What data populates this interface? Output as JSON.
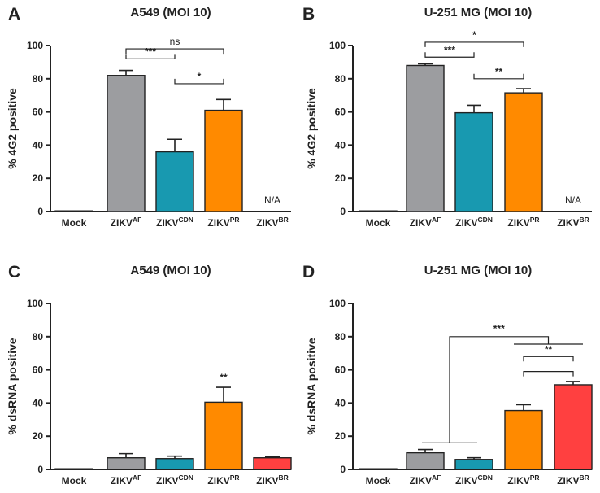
{
  "chart_data": [
    {
      "panel": "A",
      "type": "bar",
      "title": "A549 (MOI 10)",
      "ylabel": "% 4G2 positive",
      "ylim": [
        0,
        100
      ],
      "yticks": [
        0,
        20,
        40,
        60,
        80,
        100
      ],
      "categories": [
        {
          "base": "Mock",
          "sup": ""
        },
        {
          "base": "ZIKV",
          "sup": "AF"
        },
        {
          "base": "ZIKV",
          "sup": "CDN"
        },
        {
          "base": "ZIKV",
          "sup": "PR"
        },
        {
          "base": "ZIKV",
          "sup": "BR"
        }
      ],
      "values": [
        0,
        82,
        36,
        61,
        null
      ],
      "errors": [
        0,
        3,
        7.5,
        6.5,
        null
      ],
      "colors": [
        "#9c9da0",
        "#9c9da0",
        "#1899b0",
        "#ff8a00",
        "#ff4040"
      ],
      "annotations": [
        {
          "category": 4,
          "text": "N/A"
        }
      ],
      "brackets": [
        {
          "from": 1,
          "to": 3,
          "level": 98,
          "label": "ns",
          "ticks": "down",
          "style": "ns"
        },
        {
          "from": 1,
          "to": 2,
          "level": 92,
          "label": "***",
          "ticks": "up",
          "style": "sig"
        },
        {
          "from": 2,
          "to": 3,
          "level": 77,
          "label": "*",
          "ticks": "up",
          "style": "sig"
        }
      ]
    },
    {
      "panel": "B",
      "type": "bar",
      "title": "U-251 MG (MOI 10)",
      "ylabel": "% 4G2 positive",
      "ylim": [
        0,
        100
      ],
      "yticks": [
        0,
        20,
        40,
        60,
        80,
        100
      ],
      "categories": [
        {
          "base": "Mock",
          "sup": ""
        },
        {
          "base": "ZIKV",
          "sup": "AF"
        },
        {
          "base": "ZIKV",
          "sup": "CDN"
        },
        {
          "base": "ZIKV",
          "sup": "PR"
        },
        {
          "base": "ZIKV",
          "sup": "BR"
        }
      ],
      "values": [
        0,
        88,
        59.5,
        71.5,
        null
      ],
      "errors": [
        0,
        1,
        4.5,
        2.5,
        null
      ],
      "colors": [
        "#9c9da0",
        "#9c9da0",
        "#1899b0",
        "#ff8a00",
        "#ff4040"
      ],
      "annotations": [
        {
          "category": 4,
          "text": "N/A"
        }
      ],
      "brackets": [
        {
          "from": 1,
          "to": 3,
          "level": 102,
          "label": "*",
          "ticks": "down",
          "style": "sig"
        },
        {
          "from": 1,
          "to": 2,
          "level": 93,
          "label": "***",
          "ticks": "up",
          "style": "sig"
        },
        {
          "from": 2,
          "to": 3,
          "level": 80,
          "label": "**",
          "ticks": "up",
          "style": "sig"
        }
      ]
    },
    {
      "panel": "C",
      "type": "bar",
      "title": "A549 (MOI 10)",
      "ylabel": "% dsRNA positive",
      "ylim": [
        0,
        100
      ],
      "yticks": [
        0,
        20,
        40,
        60,
        80,
        100
      ],
      "categories": [
        {
          "base": "Mock",
          "sup": ""
        },
        {
          "base": "ZIKV",
          "sup": "AF"
        },
        {
          "base": "ZIKV",
          "sup": "CDN"
        },
        {
          "base": "ZIKV",
          "sup": "PR"
        },
        {
          "base": "ZIKV",
          "sup": "BR"
        }
      ],
      "values": [
        0.3,
        7,
        6.5,
        40.5,
        7
      ],
      "errors": [
        0,
        2.5,
        1.5,
        9,
        0.5
      ],
      "colors": [
        "#9c9da0",
        "#9c9da0",
        "#1899b0",
        "#ff8a00",
        "#ff4040"
      ],
      "annotations": [
        {
          "category": 3,
          "text": "**",
          "above_error": true
        }
      ],
      "brackets": []
    },
    {
      "panel": "D",
      "type": "bar",
      "title": "U-251 MG (MOI 10)",
      "ylabel": "% dsRNA positive",
      "ylim": [
        0,
        100
      ],
      "yticks": [
        0,
        20,
        40,
        60,
        80,
        100
      ],
      "categories": [
        {
          "base": "Mock",
          "sup": ""
        },
        {
          "base": "ZIKV",
          "sup": "AF"
        },
        {
          "base": "ZIKV",
          "sup": "CDN"
        },
        {
          "base": "ZIKV",
          "sup": "PR"
        },
        {
          "base": "ZIKV",
          "sup": "BR"
        }
      ],
      "values": [
        0.3,
        10,
        6,
        35.5,
        51
      ],
      "errors": [
        0,
        2,
        1,
        3.5,
        2
      ],
      "colors": [
        "#9c9da0",
        "#9c9da0",
        "#1899b0",
        "#ff8a00",
        "#ff4040"
      ],
      "annotations": [],
      "brackets": [
        {
          "type": "compound",
          "labels": [
            "***"
          ],
          "left_group": [
            1,
            2
          ],
          "left_level": 16,
          "right_group": [
            3,
            4
          ],
          "right_level": 75.5,
          "top": 80
        },
        {
          "from": 3,
          "to": 4,
          "level": 68,
          "label": "**",
          "ticks": "down",
          "style": "sig"
        },
        {
          "from": 3,
          "to": 4,
          "level": 59,
          "label": "**",
          "ticks": "down",
          "style": "sig",
          "hide_label": true
        }
      ]
    }
  ]
}
